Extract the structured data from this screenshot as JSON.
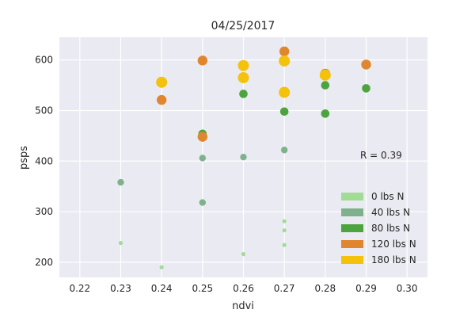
{
  "chart_data": {
    "type": "scatter",
    "title": "04/25/2017",
    "xlabel": "ndvi",
    "ylabel": "psps",
    "xlim": [
      0.215,
      0.305
    ],
    "ylim": [
      170,
      645
    ],
    "xticks": [
      0.22,
      0.23,
      0.24,
      0.25,
      0.26,
      0.27,
      0.28,
      0.29,
      0.3
    ],
    "xtick_labels": [
      "0.22",
      "0.23",
      "0.24",
      "0.25",
      "0.26",
      "0.27",
      "0.28",
      "0.29",
      "0.30"
    ],
    "yticks": [
      200,
      300,
      400,
      500,
      600
    ],
    "ytick_labels": [
      "200",
      "300",
      "400",
      "500",
      "600"
    ],
    "grid": true,
    "background": "#EAEAF2",
    "legend_position": "lower-right",
    "annotation": "R = 0.39",
    "series": [
      {
        "name": "0 lbs N",
        "color": "#A1DB95",
        "marker_size": 1,
        "points": [
          [
            0.23,
            238
          ],
          [
            0.24,
            190
          ],
          [
            0.26,
            216
          ],
          [
            0.27,
            281
          ],
          [
            0.27,
            263
          ],
          [
            0.27,
            234
          ]
        ]
      },
      {
        "name": "40 lbs N",
        "color": "#7FB28C",
        "marker_size": 2,
        "points": [
          [
            0.23,
            358
          ],
          [
            0.25,
            406
          ],
          [
            0.25,
            318
          ],
          [
            0.26,
            408
          ],
          [
            0.27,
            422
          ]
        ]
      },
      {
        "name": "80 lbs N",
        "color": "#4DA43E",
        "marker_size": 3,
        "points": [
          [
            0.25,
            454
          ],
          [
            0.26,
            533
          ],
          [
            0.27,
            498
          ],
          [
            0.28,
            550
          ],
          [
            0.28,
            494
          ],
          [
            0.29,
            544
          ]
        ]
      },
      {
        "name": "120 lbs N",
        "color": "#E0862F",
        "marker_size": 4,
        "points": [
          [
            0.24,
            521
          ],
          [
            0.25,
            599
          ],
          [
            0.25,
            448
          ],
          [
            0.27,
            617
          ],
          [
            0.28,
            573
          ],
          [
            0.29,
            591
          ]
        ]
      },
      {
        "name": "180 lbs N",
        "color": "#F5C20B",
        "marker_size": 5,
        "points": [
          [
            0.24,
            556
          ],
          [
            0.26,
            589
          ],
          [
            0.26,
            565
          ],
          [
            0.27,
            598
          ],
          [
            0.27,
            536
          ],
          [
            0.28,
            570
          ]
        ]
      }
    ]
  }
}
